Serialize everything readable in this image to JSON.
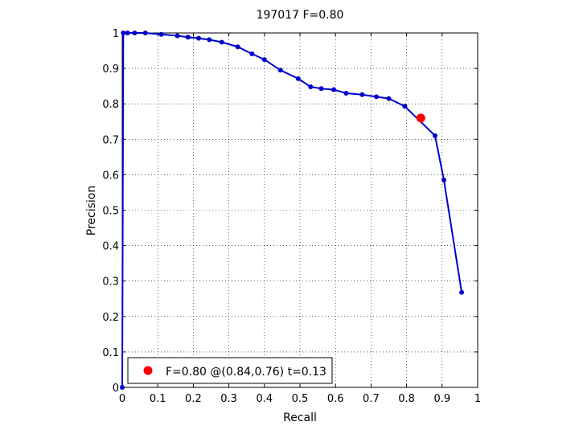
{
  "chart_data": {
    "type": "line",
    "title": "197017 F=0.80",
    "xlabel": "Recall",
    "ylabel": "Precision",
    "xlim": [
      0,
      1
    ],
    "ylim": [
      0,
      1
    ],
    "grid": true,
    "x_ticks": [
      "0",
      "0.1",
      "0.2",
      "0.3",
      "0.4",
      "0.5",
      "0.6",
      "0.7",
      "0.8",
      "0.9",
      "1"
    ],
    "y_ticks": [
      "0",
      "0.1",
      "0.2",
      "0.3",
      "0.4",
      "0.5",
      "0.6",
      "0.7",
      "0.8",
      "0.9",
      "1"
    ],
    "series": [
      {
        "color": "#0000cc",
        "points": [
          [
            0.0,
            0.0
          ],
          [
            0.003,
            1.0
          ],
          [
            0.015,
            1.0
          ],
          [
            0.035,
            1.0
          ],
          [
            0.065,
            1.0
          ],
          [
            0.11,
            0.996
          ],
          [
            0.155,
            0.992
          ],
          [
            0.185,
            0.988
          ],
          [
            0.215,
            0.985
          ],
          [
            0.245,
            0.981
          ],
          [
            0.28,
            0.974
          ],
          [
            0.325,
            0.961
          ],
          [
            0.365,
            0.941
          ],
          [
            0.4,
            0.925
          ],
          [
            0.445,
            0.895
          ],
          [
            0.495,
            0.871
          ],
          [
            0.53,
            0.848
          ],
          [
            0.56,
            0.843
          ],
          [
            0.595,
            0.84
          ],
          [
            0.63,
            0.83
          ],
          [
            0.675,
            0.826
          ],
          [
            0.715,
            0.82
          ],
          [
            0.75,
            0.815
          ],
          [
            0.795,
            0.793
          ],
          [
            0.88,
            0.71
          ],
          [
            0.905,
            0.585
          ],
          [
            0.955,
            0.268
          ]
        ]
      }
    ],
    "highlight": {
      "x": 0.84,
      "y": 0.76,
      "color": "#ff0000"
    },
    "legend": {
      "position": "bottom-left",
      "text": "F=0.80 @(0.84,0.76) t=0.13",
      "marker_color": "#ff0000"
    }
  }
}
